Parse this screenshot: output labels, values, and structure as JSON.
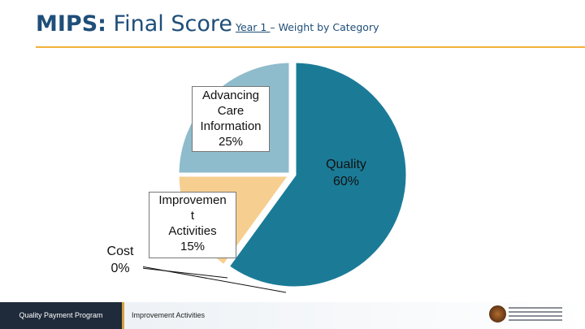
{
  "header": {
    "title_strong": "MIPS:",
    "title_rest": " Final Score",
    "subtitle_year": "Year 1 ",
    "subtitle_rest": "– Weight by Category"
  },
  "footer": {
    "program": "Quality Payment Program",
    "section": "Improvement Activities"
  },
  "colors": {
    "quality": "#1b7b97",
    "aci": "#8fbccc",
    "ia": "#f6cf90",
    "title": "#1f4e79",
    "rule": "#f2b23a"
  },
  "chart_data": {
    "type": "pie",
    "title": "",
    "slices": [
      {
        "name": "Quality",
        "value": 60,
        "label": "Quality\n60%",
        "color": "#1b7b97"
      },
      {
        "name": "Advancing Care Information",
        "value": 25,
        "label": "Advancing\nCare\nInformation\n25%",
        "color": "#8fbccc"
      },
      {
        "name": "Improvement Activities",
        "value": 15,
        "label": "Improvemen\nt\nActivities\n15%",
        "color": "#f6cf90"
      },
      {
        "name": "Cost",
        "value": 0,
        "label": "Cost\n0%",
        "color": "#1b7b97"
      }
    ]
  }
}
